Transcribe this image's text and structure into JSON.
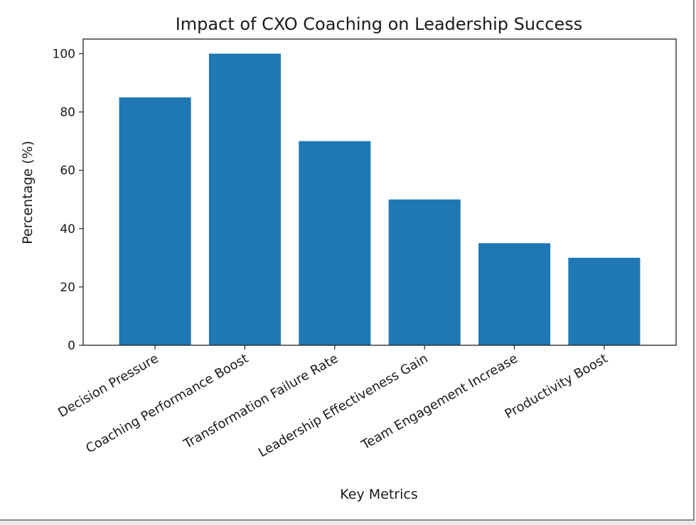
{
  "chart_data": {
    "type": "bar",
    "title": "Impact of CXO Coaching on Leadership Success",
    "xlabel": "Key Metrics",
    "ylabel": "Percentage (%)",
    "categories": [
      "Decision Pressure",
      "Coaching Performance Boost",
      "Transformation Failure Rate",
      "Leadership Effectiveness Gain",
      "Team Engagement Increase",
      "Productivity Boost"
    ],
    "values": [
      85,
      100,
      70,
      50,
      35,
      30
    ],
    "ylim": [
      0,
      105
    ],
    "yticks": [
      0,
      20,
      40,
      60,
      80,
      100
    ],
    "bar_color": "#1f77b4",
    "grid": false,
    "legend": "none"
  }
}
